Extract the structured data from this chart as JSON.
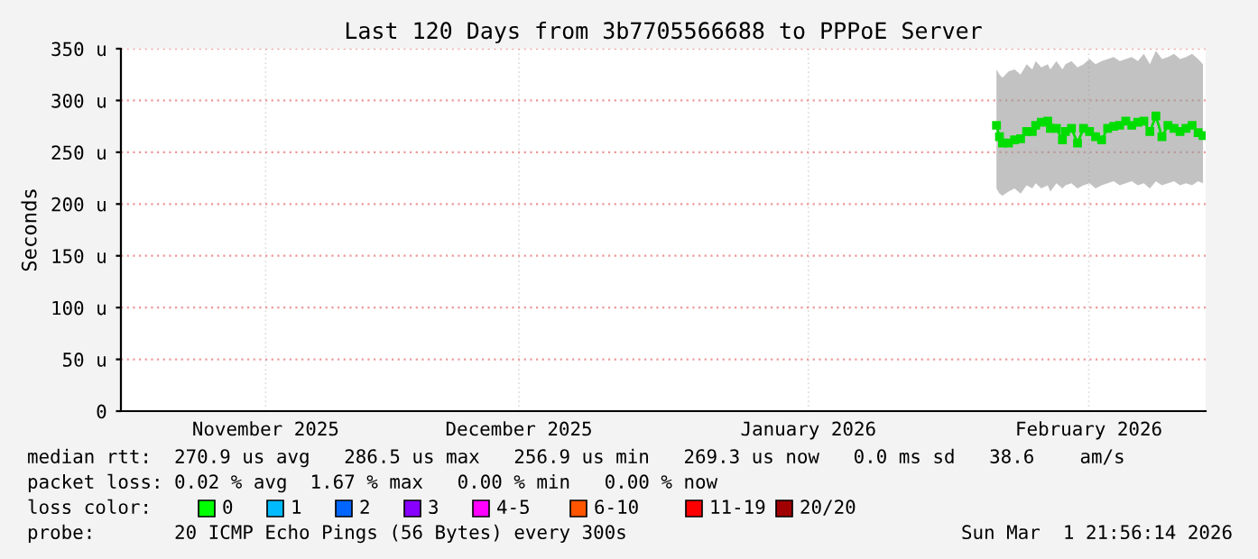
{
  "chart_data": {
    "type": "line",
    "title": "Last 120 Days from 3b7705566688 to PPPoE Server",
    "ylabel": "Seconds",
    "x": [
      "2026-02-06T19:00",
      "2026-02-07T03:00",
      "2026-02-07T11:00",
      "2026-02-08T03:00",
      "2026-02-08T19:00",
      "2026-02-09T11:00",
      "2026-02-10T03:00",
      "2026-02-10T18:00",
      "2026-02-11T03:00",
      "2026-02-11T18:00",
      "2026-02-12T11:00",
      "2026-02-12T18:00",
      "2026-02-13T10:00",
      "2026-02-14T02:00",
      "2026-02-14T10:00",
      "2026-02-15T02:00",
      "2026-02-15T18:00",
      "2026-02-16T10:00",
      "2026-02-17T02:00",
      "2026-02-17T18:00",
      "2026-02-18T10:00",
      "2026-02-19T02:00",
      "2026-02-19T18:00",
      "2026-02-20T10:00",
      "2026-02-21T02:00",
      "2026-02-21T18:00",
      "2026-02-22T10:00",
      "2026-02-23T02:00",
      "2026-02-23T18:00",
      "2026-02-24T10:00",
      "2026-02-25T02:00",
      "2026-02-25T18:00",
      "2026-02-26T10:00",
      "2026-02-27T02:00",
      "2026-02-27T18:00",
      "2026-02-28T10:00",
      "2026-03-01T02:00",
      "2026-03-01T15:00"
    ],
    "series": [
      {
        "color": "#00dd00",
        "values": [
          276,
          265,
          259,
          259,
          262,
          263,
          270,
          270,
          276,
          279,
          280,
          273,
          273,
          262,
          270,
          273,
          259,
          273,
          270,
          265,
          262,
          273,
          275,
          276,
          280,
          276,
          279,
          280,
          270,
          285,
          265,
          276,
          273,
          270,
          273,
          276,
          269,
          266
        ],
        "lower": [
          215,
          210,
          208,
          212,
          215,
          210,
          218,
          215,
          220,
          215,
          218,
          212,
          220,
          215,
          218,
          220,
          215,
          218,
          220,
          215,
          218,
          220,
          222,
          218,
          220,
          222,
          218,
          220,
          215,
          222,
          218,
          220,
          222,
          218,
          220,
          218,
          222,
          220
        ],
        "upper": [
          330,
          325,
          322,
          328,
          330,
          325,
          335,
          330,
          338,
          332,
          335,
          330,
          338,
          330,
          335,
          338,
          332,
          335,
          340,
          335,
          338,
          340,
          342,
          338,
          340,
          342,
          338,
          345,
          335,
          348,
          340,
          342,
          345,
          340,
          342,
          345,
          340,
          335
        ]
      }
    ],
    "xlim": [
      "2025-11-02T00:00",
      "2026-03-01T22:00"
    ],
    "xticks": [
      {
        "value": "2025-11-18",
        "label": "November 2025"
      },
      {
        "value": "2025-12-16",
        "label": "December 2025"
      },
      {
        "value": "2026-01-17",
        "label": "January 2026"
      },
      {
        "value": "2026-02-17",
        "label": "February 2026"
      }
    ],
    "ylim": [
      0,
      350
    ],
    "yticks": [
      {
        "value": 0,
        "label": "0"
      },
      {
        "value": 50,
        "label": "50 u"
      },
      {
        "value": 100,
        "label": "100 u"
      },
      {
        "value": 150,
        "label": "150 u"
      },
      {
        "value": 200,
        "label": "200 u"
      },
      {
        "value": 250,
        "label": "250 u"
      },
      {
        "value": 300,
        "label": "300 u"
      },
      {
        "value": 350,
        "label": "350 u"
      }
    ],
    "grid": true,
    "marker": "square",
    "annotations": [
      "median rtt:  270.9 us avg   286.5 us max   256.9 us min   269.3 us now   0.0 ms sd   38.6    am/s",
      "packet loss: 0.02 % avg  1.67 % max   0.00 % min   0.00 % now",
      "loss color:",
      "0",
      "1",
      "2",
      "3",
      "4-5",
      "6-10",
      "11-19",
      "20/20",
      "probe:       20 ICMP Echo Pings (56 Bytes) every 300s",
      "Sun Mar  1 21:56:14 2026"
    ]
  }
}
